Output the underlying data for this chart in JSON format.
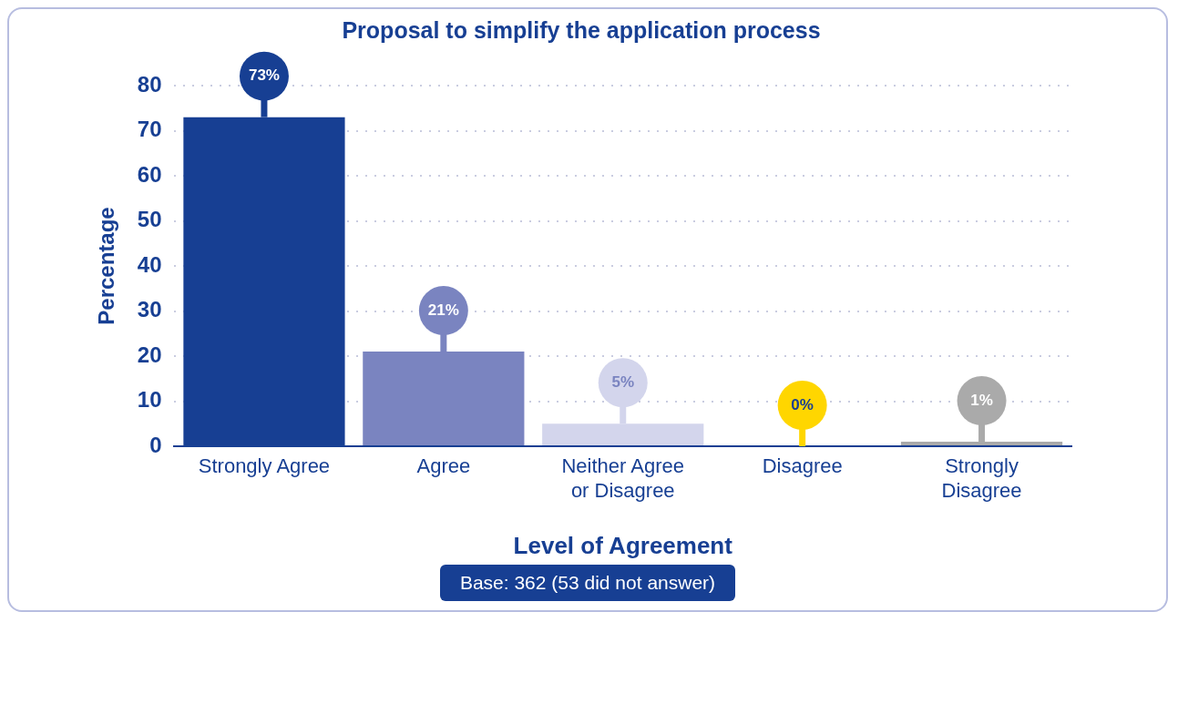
{
  "chart_data": {
    "type": "bar",
    "title": "Proposal to simplify the application process",
    "xlabel": "Level of Agreement",
    "ylabel": "Percentage",
    "categories": [
      "Strongly Agree",
      "Agree",
      "Neither Agree or Disagree",
      "Disagree",
      "Strongly Disagree"
    ],
    "values": [
      73,
      21,
      5,
      0,
      1
    ],
    "colors": [
      "#173f93",
      "#7a84c0",
      "#d3d5ec",
      "#ffd600",
      "#aaaaaa"
    ],
    "value_labels": [
      "73%",
      "21%",
      "5%",
      "0%",
      "1%"
    ],
    "ylim": [
      0,
      80
    ],
    "yticks": [
      0,
      10,
      20,
      30,
      40,
      50,
      60,
      70,
      80
    ],
    "grid": "y",
    "legend": false,
    "annotations": [
      "Base: 362 (53 did not answer)"
    ]
  }
}
